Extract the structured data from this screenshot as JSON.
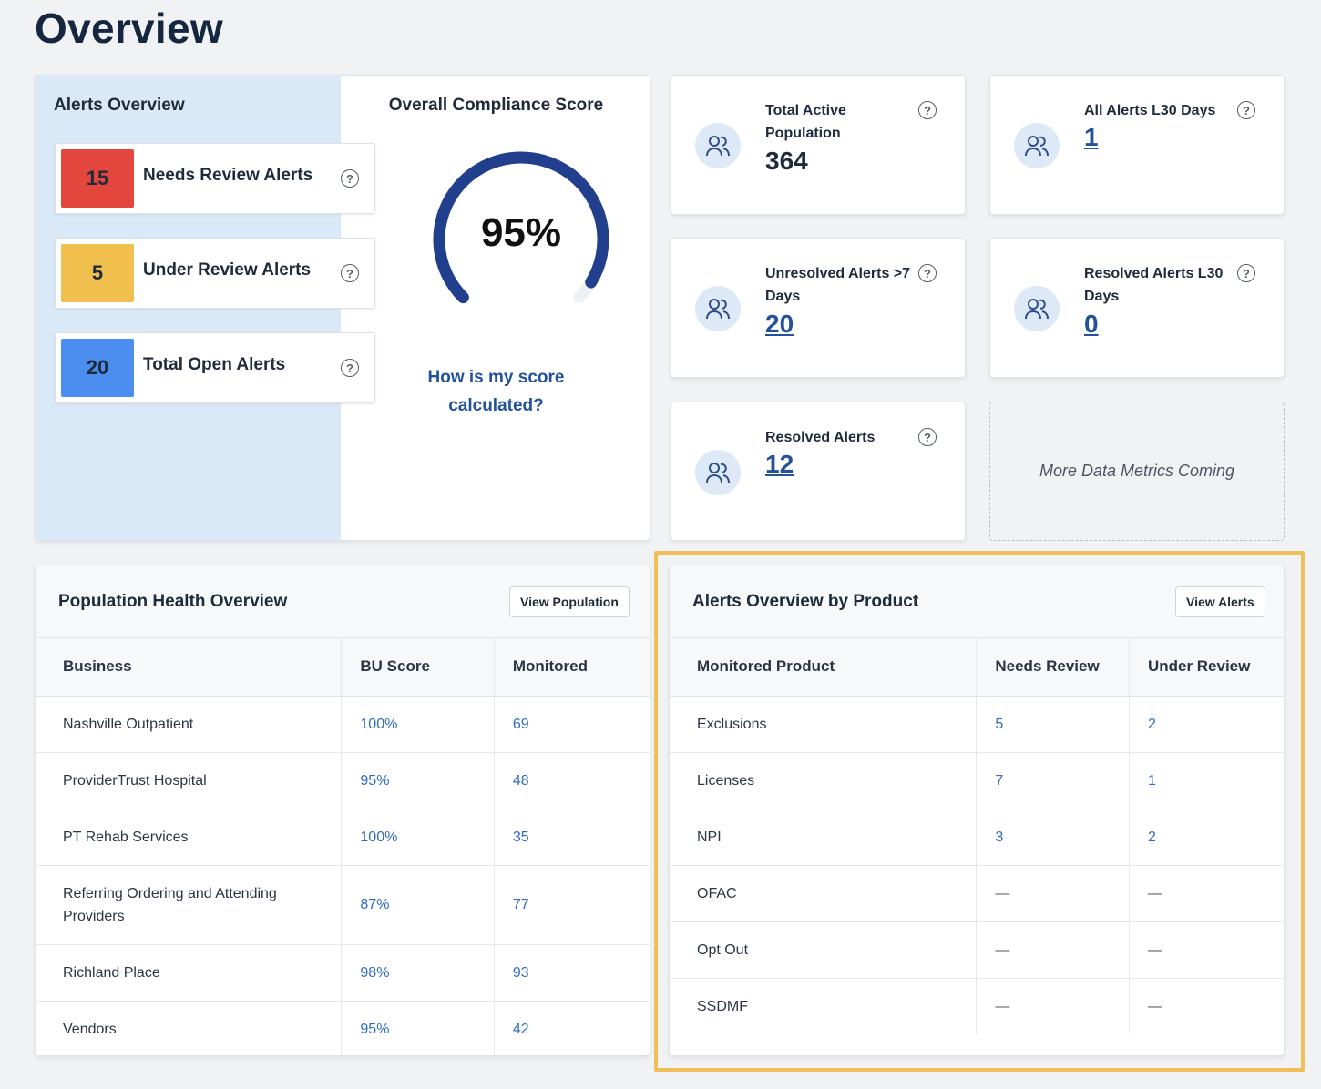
{
  "page": {
    "title": "Overview"
  },
  "alerts_overview": {
    "title": "Alerts Overview",
    "rows": [
      {
        "count": "15",
        "label": "Needs Review Alerts",
        "color": "#e2463d"
      },
      {
        "count": "5",
        "label": "Under Review Alerts",
        "color": "#f1bf4e"
      },
      {
        "count": "20",
        "label": "Total Open Alerts",
        "color": "#4b8ef0"
      }
    ]
  },
  "compliance": {
    "title": "Overall Compliance Score",
    "value": "95%",
    "percent": 95,
    "link_text": "How is my score calculated?",
    "color": "#213f8c"
  },
  "metrics": [
    {
      "label": "Total Active Population",
      "value": "364"
    },
    {
      "label": "All Alerts L30 Days",
      "value": "1"
    },
    {
      "label": "Unresolved Alerts >7 Days",
      "value": "20"
    },
    {
      "label": "Resolved Alerts L30 Days",
      "value": "0"
    },
    {
      "label": "Resolved Alerts",
      "value": "12"
    }
  ],
  "coming_soon": "More Data Metrics Coming",
  "population": {
    "title": "Population Health Overview",
    "button": "View Population",
    "columns": [
      "Business",
      "BU Score",
      "Monitored"
    ],
    "rows": [
      [
        "Nashville Outpatient",
        "100%",
        "69"
      ],
      [
        "ProviderTrust Hospital",
        "95%",
        "48"
      ],
      [
        "PT Rehab Services",
        "100%",
        "35"
      ],
      [
        "Referring Ordering and Attending Providers",
        "87%",
        "77"
      ],
      [
        "Richland Place",
        "98%",
        "93"
      ],
      [
        "Vendors",
        "95%",
        "42"
      ]
    ]
  },
  "products": {
    "title": "Alerts Overview by Product",
    "button": "View Alerts",
    "columns": [
      "Monitored Product",
      "Needs Review",
      "Under Review"
    ],
    "rows": [
      [
        "Exclusions",
        "5",
        "2"
      ],
      [
        "Licenses",
        "7",
        "1"
      ],
      [
        "NPI",
        "3",
        "2"
      ],
      [
        "OFAC",
        "—",
        "—"
      ],
      [
        "Opt Out",
        "—",
        "—"
      ],
      [
        "SSDMF",
        "—",
        "—"
      ]
    ]
  }
}
